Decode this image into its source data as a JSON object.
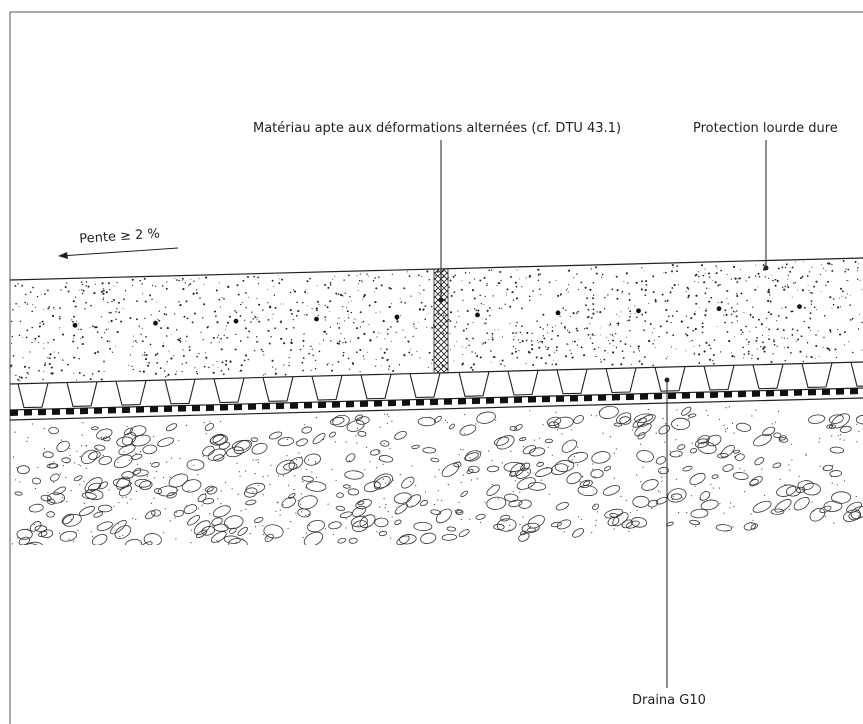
{
  "labels": {
    "materiau": "Matériau apte aux déformations alternées (cf. DTU 43.1)",
    "protection": "Protection lourde dure",
    "pente": "Pente ≥ 2 %",
    "draina": "Draina G10"
  },
  "colors": {
    "line": "#222222",
    "background": "#ffffff"
  }
}
